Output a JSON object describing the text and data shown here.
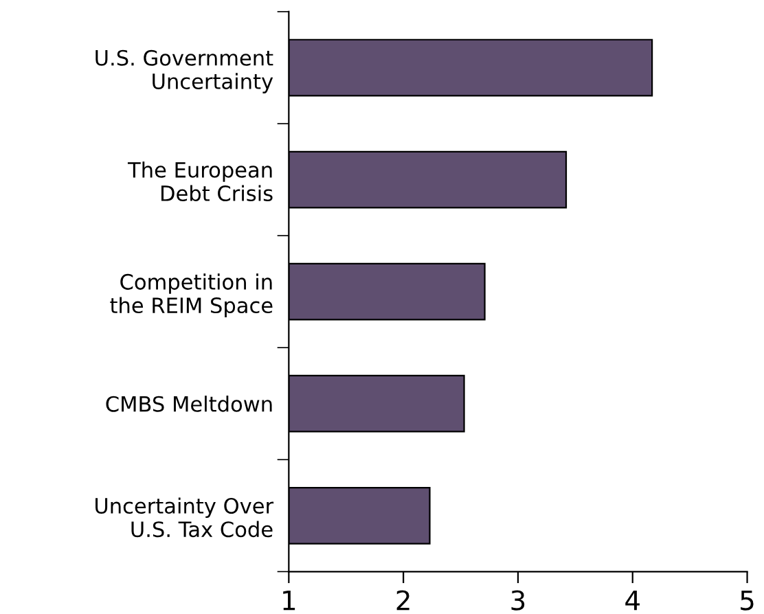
{
  "chart_data": {
    "type": "bar",
    "orientation": "horizontal",
    "categories": [
      "U.S. Government\nUncertainty",
      "The European\nDebt Crisis",
      "Competition in\nthe REIM Space",
      "CMBS Meltdown",
      "Uncertainty Over\nU.S. Tax Code"
    ],
    "values": [
      3.17,
      2.42,
      1.71,
      1.53,
      1.23
    ],
    "base": [
      1,
      1,
      1,
      1,
      1
    ],
    "color": "#5f4f70",
    "xlim": [
      1,
      5
    ],
    "xticks": [
      1,
      2,
      3,
      4,
      5
    ],
    "grid": false,
    "legend": false
  }
}
